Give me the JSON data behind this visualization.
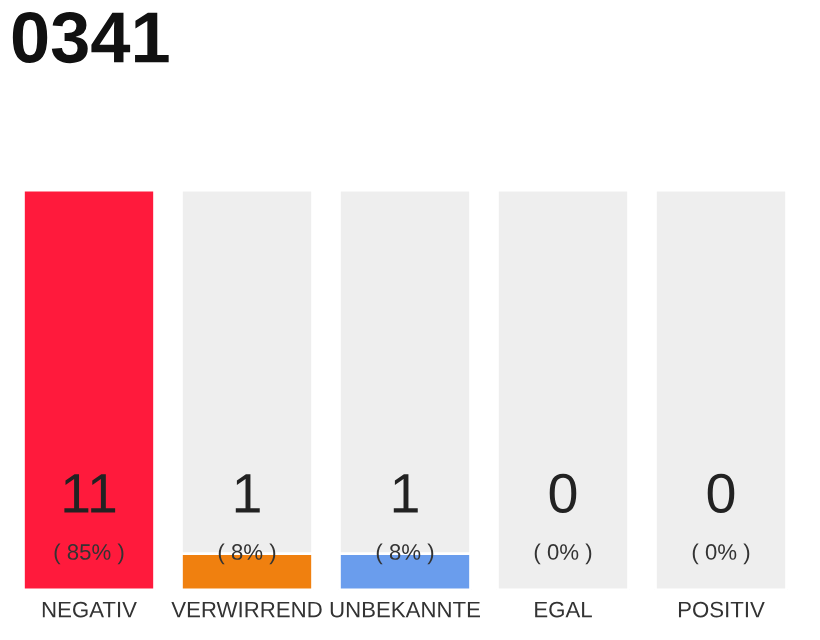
{
  "chart_data": {
    "type": "bar",
    "title": "0341",
    "stacked": true,
    "categories": [
      "NEGATIV",
      "VERWIRREND",
      "UNBEKANNTE",
      "EGAL",
      "POSITIV"
    ],
    "series": [
      {
        "colors": [
          "#ff1a3c",
          "#f0800f",
          "#6a9ded",
          null,
          null
        ],
        "values": [
          11,
          1,
          1,
          0,
          0
        ],
        "value_labels": [
          "11",
          "1",
          "1",
          "0",
          "0"
        ]
      },
      {
        "color": "#eeeeee",
        "values": [
          null,
          10,
          10,
          11,
          11
        ]
      }
    ],
    "annotations": [
      {
        "text": "( 85% )",
        "x": "NEGATIV",
        "y": 0
      },
      {
        "text": "( 8% )",
        "x": "VERWIRREND",
        "y": 0
      },
      {
        "text": "( 8% )",
        "x": "UNBEKANNTE",
        "y": 0
      },
      {
        "text": "( 0% )",
        "x": "EGAL",
        "y": 0
      },
      {
        "text": "( 0% )",
        "x": "POSITIV",
        "y": 0
      }
    ]
  }
}
